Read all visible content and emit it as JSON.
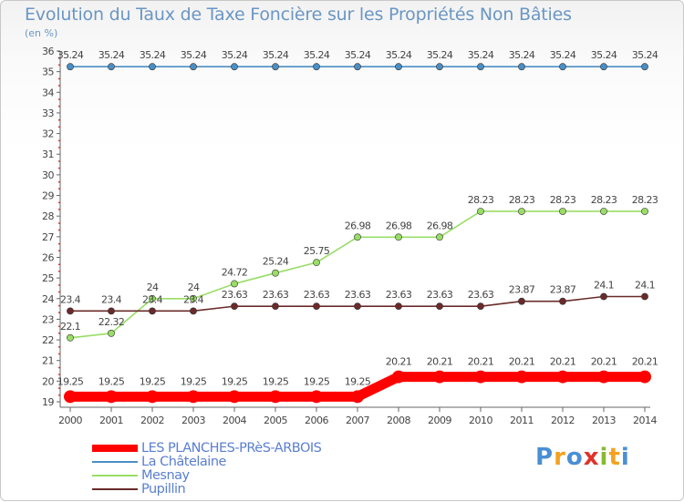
{
  "title": "Evolution du Taux de Taxe Foncière sur les Propriétés Non Bâties",
  "unit": "(en %)",
  "logo": {
    "text": "Proxiti",
    "letters": [
      "P",
      "r",
      "o",
      "x",
      "i",
      "t",
      "i"
    ],
    "colors": [
      "#4a8fd4",
      "#f4a21e",
      "#4a8fd4",
      "#e0332a",
      "#8ab832",
      "#f4a21e",
      "#4a8fd4"
    ]
  },
  "chart_data": {
    "type": "line",
    "title": "Evolution du Taux de Taxe Foncière sur les Propriétés Non Bâties",
    "xlabel": "",
    "ylabel": "(en %)",
    "x": [
      2000,
      2001,
      2002,
      2003,
      2004,
      2005,
      2006,
      2007,
      2008,
      2009,
      2010,
      2011,
      2012,
      2013,
      2014
    ],
    "ylim": [
      19,
      36
    ],
    "yticks": [
      19,
      20,
      21,
      22,
      23,
      24,
      25,
      26,
      27,
      28,
      29,
      30,
      31,
      32,
      33,
      34,
      35,
      36
    ],
    "grid": false,
    "legend_position": "bottom-left",
    "series": [
      {
        "name": "LES PLANCHES-PRèS-ARBOIS",
        "color": "#ff0000",
        "emphasis": "thick",
        "values": [
          19.25,
          19.25,
          19.25,
          19.25,
          19.25,
          19.25,
          19.25,
          19.25,
          20.21,
          20.21,
          20.21,
          20.21,
          20.21,
          20.21,
          20.21
        ],
        "labels": [
          "19.25",
          "19.25",
          "19.25",
          "19.25",
          "19.25",
          "19.25",
          "19.25",
          "19.25",
          "20.21",
          "20.21",
          "20.21",
          "20.21",
          "20.21",
          "20.21",
          "20.21"
        ]
      },
      {
        "name": "La Châtelaine",
        "color": "#4a8ec4",
        "emphasis": "normal",
        "values": [
          35.24,
          35.24,
          35.24,
          35.24,
          35.24,
          35.24,
          35.24,
          35.24,
          35.24,
          35.24,
          35.24,
          35.24,
          35.24,
          35.24,
          35.24
        ],
        "labels": [
          "35.24",
          "35.24",
          "35.24",
          "35.24",
          "35.24",
          "35.24",
          "35.24",
          "35.24",
          "35.24",
          "35.24",
          "35.24",
          "35.24",
          "35.24",
          "35.24",
          "35.24"
        ]
      },
      {
        "name": "Mesnay",
        "color": "#99dd66",
        "emphasis": "normal",
        "values": [
          22.1,
          22.32,
          24,
          24,
          24.72,
          25.24,
          25.75,
          26.98,
          26.98,
          26.98,
          28.23,
          28.23,
          28.23,
          28.23,
          28.23
        ],
        "labels": [
          "22.1",
          "22.32",
          "24",
          "24",
          "24.72",
          "25.24",
          "25.75",
          "26.98",
          "26.98",
          "26.98",
          "28.23",
          "28.23",
          "28.23",
          "28.23",
          "28.23"
        ]
      },
      {
        "name": "Pupillin",
        "color": "#6b2a2a",
        "emphasis": "normal",
        "values": [
          23.4,
          23.4,
          23.4,
          23.4,
          23.63,
          23.63,
          23.63,
          23.63,
          23.63,
          23.63,
          23.63,
          23.87,
          23.87,
          24.1,
          24.1
        ],
        "labels": [
          "23.4",
          "23.4",
          "23.4",
          "23.4",
          "23.63",
          "23.63",
          "23.63",
          "23.63",
          "23.63",
          "23.63",
          "23.63",
          "23.87",
          "23.87",
          "24.1",
          "24.1"
        ]
      }
    ]
  }
}
